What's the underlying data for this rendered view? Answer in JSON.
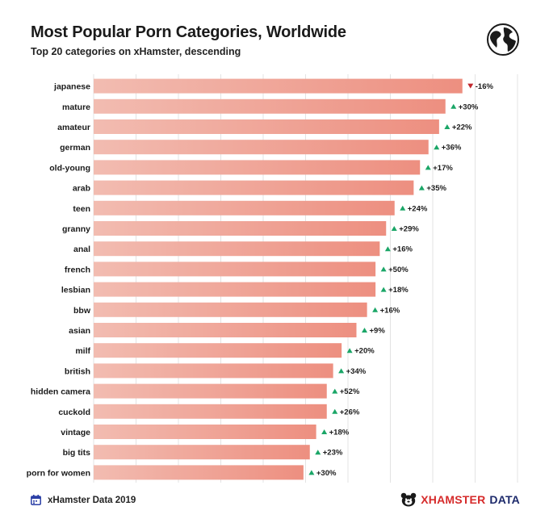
{
  "header": {
    "title": "Most Popular Porn Categories, Worldwide",
    "subtitle": "Top 20 categories on xHamster, descending"
  },
  "icons": {
    "globe": "globe-icon",
    "calendar": "calendar-icon",
    "logo": "xhamster-logo-icon"
  },
  "footer": {
    "source": "xHamster Data 2019",
    "brand_main": "XHAMSTER",
    "brand_sub": "DATA"
  },
  "colors": {
    "bar_start": "#f2bcb1",
    "bar_end": "#ed8f80",
    "up": "#1aa667",
    "down": "#c0272d",
    "grid": "#e3e3e3"
  },
  "chart_data": {
    "type": "bar",
    "orientation": "horizontal",
    "title": "Most Popular Porn Categories, Worldwide",
    "subtitle": "Top 20 categories on xHamster, descending",
    "xlim": [
      0,
      100
    ],
    "grid": true,
    "categories": [
      "japanese",
      "mature",
      "amateur",
      "german",
      "old-young",
      "arab",
      "teen",
      "granny",
      "anal",
      "french",
      "lesbian",
      "bbw",
      "asian",
      "milf",
      "british",
      "hidden camera",
      "cuckold",
      "vintage",
      "big tits",
      "porn for women"
    ],
    "values": [
      87,
      83,
      81.5,
      79,
      77,
      75.5,
      71,
      69,
      67.5,
      66.5,
      66.5,
      64.5,
      62,
      58.5,
      56.5,
      55,
      55,
      52.5,
      51,
      49.5
    ],
    "changes": [
      {
        "label": "-16%",
        "dir": "down"
      },
      {
        "label": "+30%",
        "dir": "up"
      },
      {
        "label": "+22%",
        "dir": "up"
      },
      {
        "label": "+36%",
        "dir": "up"
      },
      {
        "label": "+17%",
        "dir": "up"
      },
      {
        "label": "+35%",
        "dir": "up"
      },
      {
        "label": "+24%",
        "dir": "up"
      },
      {
        "label": "+29%",
        "dir": "up"
      },
      {
        "label": "+16%",
        "dir": "up"
      },
      {
        "label": "+50%",
        "dir": "up"
      },
      {
        "label": "+18%",
        "dir": "up"
      },
      {
        "label": "+16%",
        "dir": "up"
      },
      {
        "label": "+9%",
        "dir": "up"
      },
      {
        "label": "+20%",
        "dir": "up"
      },
      {
        "label": "+34%",
        "dir": "up"
      },
      {
        "label": "+52%",
        "dir": "up"
      },
      {
        "label": "+26%",
        "dir": "up"
      },
      {
        "label": "+18%",
        "dir": "up"
      },
      {
        "label": "+23%",
        "dir": "up"
      },
      {
        "label": "+30%",
        "dir": "up"
      }
    ]
  }
}
